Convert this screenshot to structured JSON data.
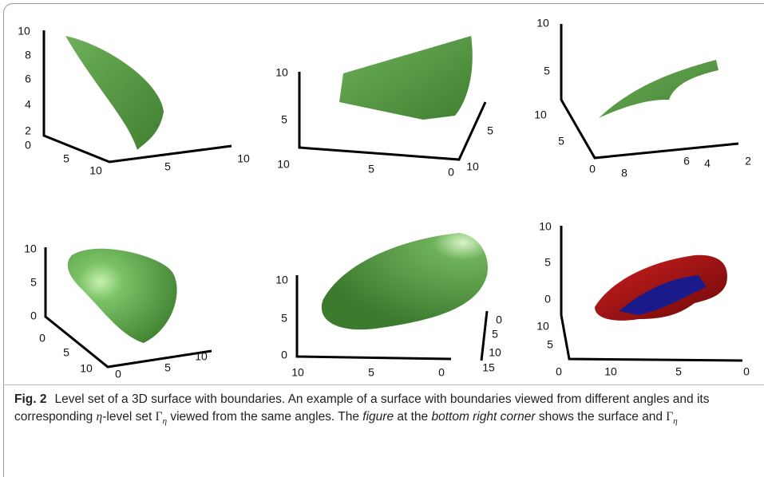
{
  "panels": [
    {
      "ticks": [
        "10",
        "8",
        "6",
        "4",
        "2",
        "0",
        "5",
        "10",
        "5",
        "10"
      ]
    },
    {
      "ticks": [
        "10",
        "5",
        "10",
        "5",
        "0",
        "5",
        "10"
      ]
    },
    {
      "ticks": [
        "10",
        "5",
        "10",
        "5",
        "0",
        "8",
        "6",
        "4",
        "2"
      ]
    },
    {
      "ticks": [
        "10",
        "5",
        "0",
        "0",
        "5",
        "10",
        "0",
        "5",
        "10"
      ]
    },
    {
      "ticks": [
        "10",
        "5",
        "0",
        "10",
        "5",
        "0",
        "0",
        "5",
        "10",
        "15"
      ]
    },
    {
      "ticks": [
        "10",
        "5",
        "0",
        "10",
        "5",
        "0",
        "10",
        "5",
        "0"
      ]
    }
  ],
  "caption": {
    "label": "Fig. 2",
    "segments": [
      "Level set of a 3D surface with boundaries. An example of a surface with boundaries viewed from different angles and its corresponding ",
      "η",
      "-level set ",
      "Γ",
      "η",
      " viewed from the same angles. The ",
      "figure",
      " at the ",
      "bottom right corner",
      " shows the surface and ",
      "Γ",
      "η"
    ]
  }
}
